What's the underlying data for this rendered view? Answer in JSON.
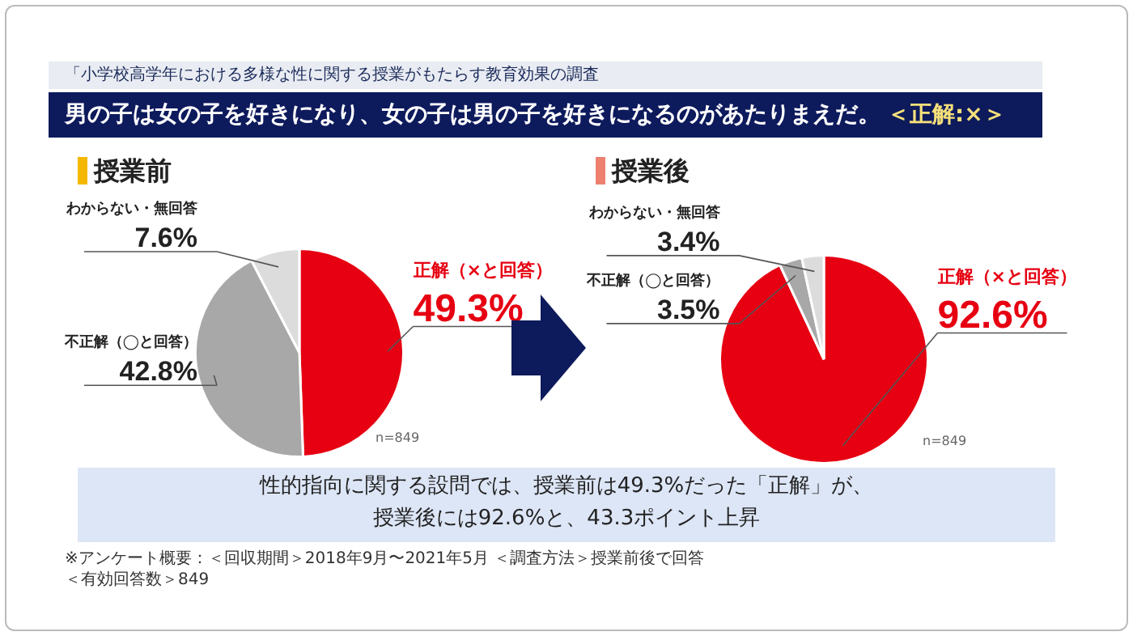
{
  "chart_data": [
    {
      "type": "pie",
      "title": "授業前",
      "categories": [
        "正解（×と回答）",
        "不正解（◯と回答）",
        "わからない・無回答"
      ],
      "values": [
        49.3,
        42.8,
        7.6
      ],
      "colors": [
        "#e60012",
        "#a8a8a8",
        "#dcdcdc"
      ],
      "value_labels": [
        "49.3%",
        "42.8%",
        "7.6%"
      ],
      "legend": false,
      "annotations": [
        "「小学校高学年における多様な性に関する授業がもたらす教育効果の調査",
        "男の子は女の子を好きになり、女の子は男の子を好きになるのがあたりまえだ。",
        "＜正解:×＞",
        "n=849"
      ]
    },
    {
      "type": "pie",
      "title": "授業後",
      "categories": [
        "正解（×と回答）",
        "不正解（◯と回答）",
        "わからない・無回答"
      ],
      "values": [
        92.6,
        3.5,
        3.4
      ],
      "colors": [
        "#e60012",
        "#a8a8a8",
        "#dcdcdc"
      ],
      "value_labels": [
        "92.6%",
        "3.5%",
        "3.4%"
      ],
      "legend": false,
      "annotations": [
        "n=849",
        "性的指向に関する設問では、授業前は49.3%だった「正解」が、",
        "授業後には92.6%と、43.3ポイント上昇",
        "※アンケート概要：＜回収期間＞2018年9月〜2021年5月 ＜調査方法＞授業前後で回答",
        "＜有効回答数＞849"
      ]
    }
  ]
}
